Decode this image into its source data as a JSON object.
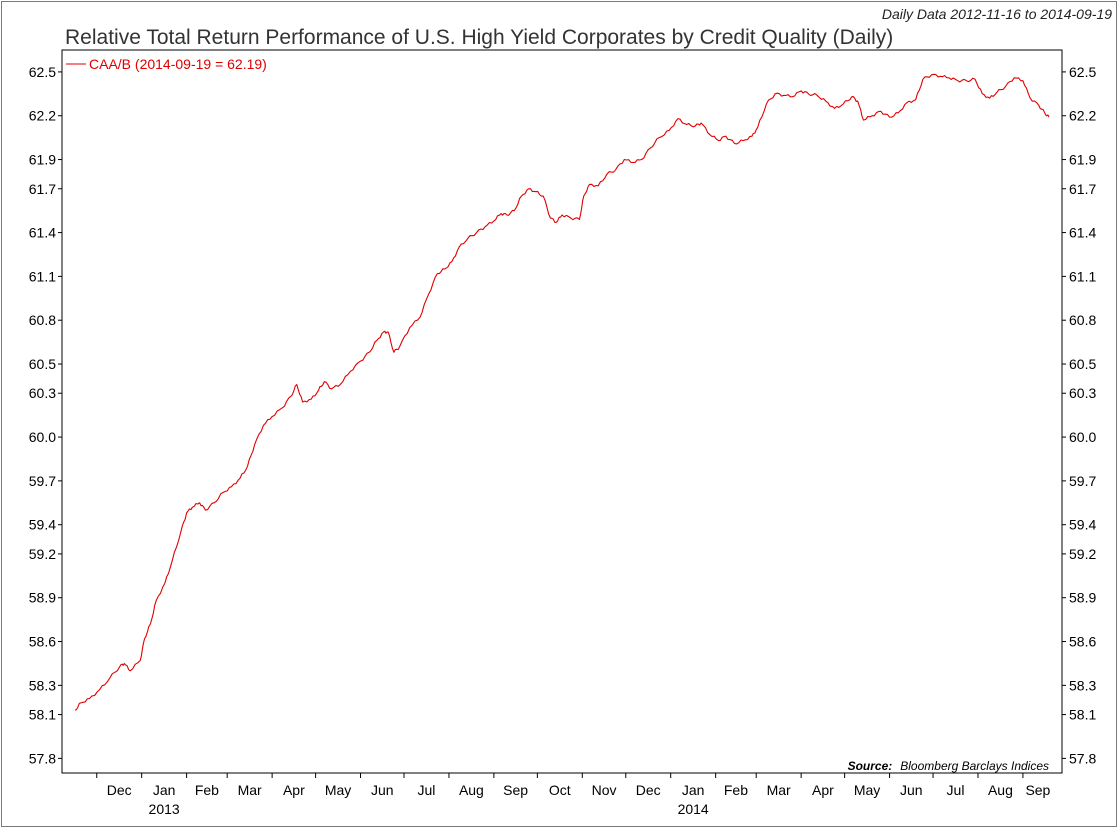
{
  "header": {
    "date_range": "Daily Data 2012-11-16 to 2014-09-19",
    "title": "Relative Total Return Performance of U.S. High Yield Corporates by Credit Quality (Daily)"
  },
  "footer": {
    "source_label": "Source:",
    "source_text": "Bloomberg Barclays Indices"
  },
  "colors": {
    "series": "#e00000",
    "axis": "#000000",
    "frame": "#7a7a7a"
  },
  "chart_data": {
    "type": "line",
    "title": "Relative Total Return Performance of U.S. High Yield Corporates by Credit Quality (Daily)",
    "xlabel": "",
    "ylabel": "",
    "x_range": [
      "2012-11-16",
      "2014-09-19"
    ],
    "ylim": [
      57.7,
      62.65
    ],
    "y_ticks": [
      "57.8",
      "58.1",
      "58.3",
      "58.6",
      "58.9",
      "59.2",
      "59.4",
      "59.7",
      "60.0",
      "60.3",
      "60.5",
      "60.8",
      "61.1",
      "61.4",
      "61.7",
      "61.9",
      "62.2",
      "62.5"
    ],
    "x_ticks": [
      {
        "date": "2012-12-01",
        "label": "Dec",
        "year": ""
      },
      {
        "date": "2013-01-01",
        "label": "Jan",
        "year": "2013"
      },
      {
        "date": "2013-02-01",
        "label": "Feb",
        "year": ""
      },
      {
        "date": "2013-03-01",
        "label": "Mar",
        "year": ""
      },
      {
        "date": "2013-04-01",
        "label": "Apr",
        "year": ""
      },
      {
        "date": "2013-05-01",
        "label": "May",
        "year": ""
      },
      {
        "date": "2013-06-01",
        "label": "Jun",
        "year": ""
      },
      {
        "date": "2013-07-01",
        "label": "Jul",
        "year": ""
      },
      {
        "date": "2013-08-01",
        "label": "Aug",
        "year": ""
      },
      {
        "date": "2013-09-01",
        "label": "Sep",
        "year": ""
      },
      {
        "date": "2013-10-01",
        "label": "Oct",
        "year": ""
      },
      {
        "date": "2013-11-01",
        "label": "Nov",
        "year": ""
      },
      {
        "date": "2013-12-01",
        "label": "Dec",
        "year": ""
      },
      {
        "date": "2014-01-01",
        "label": "Jan",
        "year": "2014"
      },
      {
        "date": "2014-02-01",
        "label": "Feb",
        "year": ""
      },
      {
        "date": "2014-03-01",
        "label": "Mar",
        "year": ""
      },
      {
        "date": "2014-04-01",
        "label": "Apr",
        "year": ""
      },
      {
        "date": "2014-05-01",
        "label": "May",
        "year": ""
      },
      {
        "date": "2014-06-01",
        "label": "Jun",
        "year": ""
      },
      {
        "date": "2014-07-01",
        "label": "Jul",
        "year": ""
      },
      {
        "date": "2014-08-01",
        "label": "Aug",
        "year": ""
      },
      {
        "date": "2014-09-01",
        "label": "Sep",
        "year": ""
      }
    ],
    "grid": false,
    "legend": "top-left",
    "series": [
      {
        "name": "CAA/B (2014-09-19 = 62.19)",
        "points": [
          [
            "2012-11-16",
            58.13
          ],
          [
            "2012-11-20",
            58.18
          ],
          [
            "2012-11-26",
            58.21
          ],
          [
            "2012-12-03",
            58.27
          ],
          [
            "2012-12-10",
            58.35
          ],
          [
            "2012-12-17",
            58.43
          ],
          [
            "2012-12-20",
            58.45
          ],
          [
            "2012-12-24",
            58.4
          ],
          [
            "2012-12-31",
            58.47
          ],
          [
            "2013-01-03",
            58.62
          ],
          [
            "2013-01-07",
            58.72
          ],
          [
            "2013-01-11",
            58.88
          ],
          [
            "2013-01-17",
            59.0
          ],
          [
            "2013-01-22",
            59.15
          ],
          [
            "2013-01-28",
            59.35
          ],
          [
            "2013-02-01",
            59.48
          ],
          [
            "2013-02-05",
            59.52
          ],
          [
            "2013-02-10",
            59.55
          ],
          [
            "2013-02-14",
            59.5
          ],
          [
            "2013-02-20",
            59.55
          ],
          [
            "2013-02-26",
            59.62
          ],
          [
            "2013-03-04",
            59.66
          ],
          [
            "2013-03-10",
            59.72
          ],
          [
            "2013-03-15",
            59.8
          ],
          [
            "2013-03-20",
            59.95
          ],
          [
            "2013-03-26",
            60.08
          ],
          [
            "2013-04-01",
            60.14
          ],
          [
            "2013-04-08",
            60.2
          ],
          [
            "2013-04-14",
            60.28
          ],
          [
            "2013-04-18",
            60.36
          ],
          [
            "2013-04-22",
            60.24
          ],
          [
            "2013-04-28",
            60.26
          ],
          [
            "2013-05-03",
            60.32
          ],
          [
            "2013-05-07",
            60.38
          ],
          [
            "2013-05-12",
            60.33
          ],
          [
            "2013-05-18",
            60.36
          ],
          [
            "2013-05-25",
            60.45
          ],
          [
            "2013-06-01",
            60.52
          ],
          [
            "2013-06-07",
            60.58
          ],
          [
            "2013-06-12",
            60.66
          ],
          [
            "2013-06-17",
            60.72
          ],
          [
            "2013-06-20",
            60.72
          ],
          [
            "2013-06-24",
            60.58
          ],
          [
            "2013-06-28",
            60.62
          ],
          [
            "2013-07-05",
            60.75
          ],
          [
            "2013-07-12",
            60.82
          ],
          [
            "2013-07-18",
            60.98
          ],
          [
            "2013-07-24",
            61.12
          ],
          [
            "2013-07-29",
            61.15
          ],
          [
            "2013-08-03",
            61.2
          ],
          [
            "2013-08-08",
            61.3
          ],
          [
            "2013-08-14",
            61.36
          ],
          [
            "2013-08-20",
            61.4
          ],
          [
            "2013-08-26",
            61.44
          ],
          [
            "2013-09-01",
            61.48
          ],
          [
            "2013-09-06",
            61.53
          ],
          [
            "2013-09-10",
            61.52
          ],
          [
            "2013-09-15",
            61.55
          ],
          [
            "2013-09-20",
            61.65
          ],
          [
            "2013-09-25",
            61.7
          ],
          [
            "2013-09-30",
            61.68
          ],
          [
            "2013-10-05",
            61.65
          ],
          [
            "2013-10-10",
            61.5
          ],
          [
            "2013-10-14",
            61.47
          ],
          [
            "2013-10-18",
            61.52
          ],
          [
            "2013-10-24",
            61.5
          ],
          [
            "2013-10-30",
            61.49
          ],
          [
            "2013-11-02",
            61.65
          ],
          [
            "2013-11-06",
            61.73
          ],
          [
            "2013-11-12",
            61.72
          ],
          [
            "2013-11-18",
            61.8
          ],
          [
            "2013-11-24",
            61.83
          ],
          [
            "2013-11-30",
            61.9
          ],
          [
            "2013-12-06",
            61.88
          ],
          [
            "2013-12-12",
            61.9
          ],
          [
            "2013-12-18",
            61.98
          ],
          [
            "2013-12-24",
            62.05
          ],
          [
            "2013-12-31",
            62.1
          ],
          [
            "2014-01-06",
            62.18
          ],
          [
            "2014-01-12",
            62.14
          ],
          [
            "2014-01-18",
            62.13
          ],
          [
            "2014-01-22",
            62.15
          ],
          [
            "2014-01-28",
            62.07
          ],
          [
            "2014-02-03",
            62.03
          ],
          [
            "2014-02-08",
            62.06
          ],
          [
            "2014-02-14",
            62.01
          ],
          [
            "2014-02-20",
            62.03
          ],
          [
            "2014-02-26",
            62.06
          ],
          [
            "2014-03-02",
            62.12
          ],
          [
            "2014-03-08",
            62.28
          ],
          [
            "2014-03-14",
            62.35
          ],
          [
            "2014-03-20",
            62.34
          ],
          [
            "2014-03-26",
            62.33
          ],
          [
            "2014-04-01",
            62.37
          ],
          [
            "2014-04-06",
            62.35
          ],
          [
            "2014-04-12",
            62.34
          ],
          [
            "2014-04-18",
            62.3
          ],
          [
            "2014-04-24",
            62.25
          ],
          [
            "2014-04-30",
            62.28
          ],
          [
            "2014-05-06",
            62.33
          ],
          [
            "2014-05-10",
            62.3
          ],
          [
            "2014-05-14",
            62.17
          ],
          [
            "2014-05-20",
            62.2
          ],
          [
            "2014-05-26",
            62.23
          ],
          [
            "2014-06-01",
            62.19
          ],
          [
            "2014-06-07",
            62.22
          ],
          [
            "2014-06-13",
            62.29
          ],
          [
            "2014-06-19",
            62.31
          ],
          [
            "2014-06-24",
            62.45
          ],
          [
            "2014-06-30",
            62.48
          ],
          [
            "2014-07-06",
            62.47
          ],
          [
            "2014-07-12",
            62.46
          ],
          [
            "2014-07-18",
            62.44
          ],
          [
            "2014-07-24",
            62.44
          ],
          [
            "2014-07-30",
            62.45
          ],
          [
            "2014-08-04",
            62.35
          ],
          [
            "2014-08-09",
            62.32
          ],
          [
            "2014-08-14",
            62.36
          ],
          [
            "2014-08-20",
            62.4
          ],
          [
            "2014-08-26",
            62.46
          ],
          [
            "2014-09-01",
            62.44
          ],
          [
            "2014-09-06",
            62.32
          ],
          [
            "2014-09-12",
            62.27
          ],
          [
            "2014-09-16",
            62.22
          ],
          [
            "2014-09-19",
            62.19
          ]
        ]
      }
    ]
  }
}
